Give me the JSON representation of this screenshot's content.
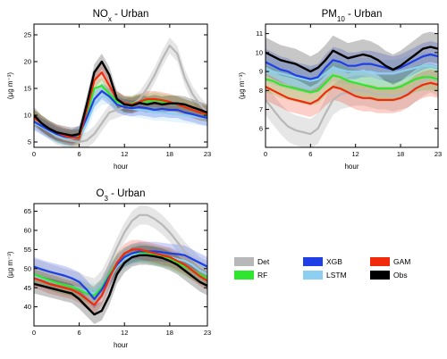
{
  "chart_data": [
    {
      "type": "line",
      "title_main": "NO",
      "title_sub": "x",
      "title_rest": " - Urban",
      "xlabel": "hour",
      "ylabel": "(µg m⁻³)",
      "xlim": [
        0,
        23
      ],
      "ylim": [
        4,
        27
      ],
      "xticks": [
        0,
        6,
        12,
        18,
        23
      ],
      "yticks": [
        5,
        10,
        15,
        20,
        25
      ],
      "x": [
        0,
        1,
        2,
        3,
        4,
        5,
        6,
        7,
        8,
        9,
        10,
        11,
        12,
        13,
        14,
        15,
        16,
        17,
        18,
        19,
        20,
        21,
        22,
        23
      ],
      "series": [
        {
          "name": "Det",
          "values": [
            9.5,
            8.0,
            7.0,
            6.0,
            5.5,
            5.2,
            5.0,
            5.3,
            6.5,
            8.5,
            10.5,
            11.0,
            11.5,
            12.0,
            13.0,
            15.0,
            17.5,
            20.5,
            23.0,
            21.5,
            17.0,
            14.0,
            12.0,
            10.5
          ],
          "band": 1.5
        },
        {
          "name": "RF",
          "values": [
            9.5,
            8.5,
            7.5,
            6.5,
            6.0,
            5.8,
            6.0,
            10.0,
            15.0,
            15.5,
            14.0,
            12.5,
            12.0,
            12.2,
            12.5,
            12.5,
            12.8,
            12.5,
            12.2,
            12.0,
            11.5,
            11.0,
            10.5,
            10.2
          ],
          "band": 1.5
        },
        {
          "name": "XGB",
          "values": [
            8.8,
            8.0,
            7.2,
            6.5,
            6.0,
            5.8,
            6.5,
            9.5,
            13.0,
            14.5,
            13.5,
            12.0,
            11.5,
            11.3,
            11.5,
            11.3,
            11.0,
            11.2,
            11.0,
            11.0,
            10.5,
            10.2,
            9.8,
            9.5
          ],
          "band": 1.5
        },
        {
          "name": "LSTM",
          "values": [
            8.5,
            7.8,
            7.0,
            6.3,
            5.8,
            5.6,
            6.0,
            8.5,
            12.0,
            13.5,
            13.5,
            12.3,
            11.5,
            11.2,
            11.0,
            10.8,
            10.5,
            10.5,
            10.3,
            10.2,
            10.0,
            9.8,
            9.6,
            9.4
          ],
          "band": 1.5
        },
        {
          "name": "GAM",
          "values": [
            9.5,
            8.5,
            7.5,
            6.8,
            6.2,
            5.8,
            5.8,
            11.0,
            16.5,
            18.0,
            15.5,
            13.0,
            12.2,
            12.0,
            12.5,
            13.0,
            13.0,
            12.8,
            12.5,
            12.0,
            11.5,
            11.0,
            10.5,
            10.3
          ],
          "band": 1.5
        },
        {
          "name": "Obs",
          "values": [
            10.0,
            8.5,
            7.5,
            6.8,
            6.5,
            6.2,
            6.5,
            12.0,
            18.0,
            20.0,
            17.5,
            13.0,
            12.0,
            11.8,
            12.3,
            12.0,
            12.3,
            12.0,
            12.2,
            12.2,
            12.0,
            11.5,
            11.0,
            10.5
          ],
          "band": 1.5
        }
      ]
    },
    {
      "type": "line",
      "title_main": "PM",
      "title_sub": "10",
      "title_rest": " - Urban",
      "xlabel": "hour",
      "ylabel": "(µg m⁻³)",
      "xlim": [
        0,
        23
      ],
      "ylim": [
        5,
        11.5
      ],
      "xticks": [
        0,
        6,
        12,
        18,
        23
      ],
      "yticks": [
        6,
        7,
        8,
        9,
        10,
        11
      ],
      "x": [
        0,
        1,
        2,
        3,
        4,
        5,
        6,
        7,
        8,
        9,
        10,
        11,
        12,
        13,
        14,
        15,
        16,
        17,
        18,
        19,
        20,
        21,
        22,
        23
      ],
      "series": [
        {
          "name": "Det",
          "values": [
            7.5,
            7.0,
            6.5,
            6.1,
            5.9,
            5.8,
            5.7,
            6.0,
            6.8,
            7.5,
            7.8,
            7.9,
            8.0,
            8.0,
            7.9,
            7.8,
            7.8,
            7.7,
            7.8,
            7.9,
            8.2,
            8.5,
            8.7,
            8.5
          ],
          "band": 0.8
        },
        {
          "name": "RF",
          "values": [
            8.6,
            8.5,
            8.3,
            8.2,
            8.1,
            8.0,
            7.9,
            8.0,
            8.4,
            8.8,
            8.7,
            8.5,
            8.4,
            8.3,
            8.2,
            8.1,
            8.1,
            8.1,
            8.2,
            8.4,
            8.6,
            8.7,
            8.7,
            8.6
          ],
          "band": 0.7
        },
        {
          "name": "XGB",
          "values": [
            9.5,
            9.3,
            9.1,
            9.0,
            8.8,
            8.7,
            8.6,
            8.7,
            9.2,
            9.6,
            9.5,
            9.3,
            9.3,
            9.4,
            9.4,
            9.3,
            9.2,
            9.1,
            9.2,
            9.4,
            9.6,
            9.8,
            9.9,
            9.8
          ],
          "band": 0.7
        },
        {
          "name": "LSTM",
          "values": [
            9.2,
            9.0,
            8.9,
            8.8,
            8.7,
            8.6,
            8.5,
            8.6,
            8.9,
            9.2,
            9.1,
            9.0,
            9.0,
            9.0,
            9.0,
            8.9,
            8.9,
            8.9,
            9.0,
            9.1,
            9.2,
            9.3,
            9.3,
            9.2
          ],
          "band": 0.7
        },
        {
          "name": "GAM",
          "values": [
            8.2,
            8.0,
            7.8,
            7.6,
            7.5,
            7.4,
            7.3,
            7.5,
            7.9,
            8.2,
            8.1,
            7.9,
            7.7,
            7.6,
            7.6,
            7.5,
            7.5,
            7.5,
            7.6,
            7.8,
            8.1,
            8.3,
            8.4,
            8.3
          ],
          "band": 0.7
        },
        {
          "name": "Obs",
          "values": [
            10.0,
            9.8,
            9.6,
            9.5,
            9.4,
            9.2,
            9.0,
            9.2,
            9.6,
            10.1,
            9.9,
            9.7,
            9.8,
            9.9,
            9.8,
            9.6,
            9.3,
            9.1,
            9.3,
            9.6,
            9.9,
            10.2,
            10.3,
            10.2
          ],
          "band": 0.8
        }
      ]
    },
    {
      "type": "line",
      "title_main": "O",
      "title_sub": "3",
      "title_rest": " - Urban",
      "xlabel": "hour",
      "ylabel": "(µg m⁻³)",
      "xlim": [
        0,
        23
      ],
      "ylim": [
        35,
        67
      ],
      "xticks": [
        0,
        6,
        12,
        18,
        23
      ],
      "yticks": [
        40,
        45,
        50,
        55,
        60,
        65
      ],
      "x": [
        0,
        1,
        2,
        3,
        4,
        5,
        6,
        7,
        8,
        9,
        10,
        11,
        12,
        13,
        14,
        15,
        16,
        17,
        18,
        19,
        20,
        21,
        22,
        23
      ],
      "series": [
        {
          "name": "Det",
          "values": [
            50.0,
            49.5,
            48.8,
            48.2,
            47.5,
            47.0,
            46.5,
            45.5,
            45.0,
            47.0,
            51.0,
            55.5,
            59.5,
            62.5,
            64.0,
            64.0,
            63.0,
            61.5,
            59.5,
            57.0,
            54.5,
            52.5,
            50.5,
            49.5
          ],
          "band": 2.5
        },
        {
          "name": "RF",
          "values": [
            48.5,
            47.8,
            47.0,
            46.3,
            45.8,
            45.2,
            44.5,
            43.5,
            43.0,
            45.0,
            48.5,
            51.5,
            53.0,
            54.0,
            54.2,
            54.0,
            53.5,
            53.0,
            52.5,
            51.5,
            50.5,
            49.5,
            48.5,
            47.5
          ],
          "band": 2.5
        },
        {
          "name": "XGB",
          "values": [
            50.5,
            49.8,
            49.2,
            48.7,
            48.2,
            47.5,
            46.5,
            44.5,
            42.0,
            44.5,
            48.0,
            51.0,
            53.0,
            54.0,
            54.5,
            54.5,
            54.5,
            54.3,
            54.0,
            53.8,
            53.5,
            52.5,
            51.5,
            50.5
          ],
          "band": 2.5
        },
        {
          "name": "LSTM",
          "values": [
            48.0,
            47.5,
            46.8,
            46.2,
            45.8,
            45.3,
            44.8,
            44.0,
            43.5,
            44.5,
            47.5,
            50.5,
            52.5,
            53.5,
            54.0,
            53.8,
            53.5,
            53.2,
            53.0,
            52.5,
            52.0,
            51.0,
            49.5,
            48.5
          ],
          "band": 2.5
        },
        {
          "name": "GAM",
          "values": [
            47.5,
            46.8,
            46.0,
            45.5,
            45.0,
            44.5,
            43.5,
            42.0,
            40.5,
            43.0,
            47.5,
            51.5,
            54.0,
            55.0,
            55.0,
            54.5,
            54.0,
            53.5,
            53.0,
            52.0,
            51.0,
            49.5,
            48.0,
            46.8
          ],
          "band": 2.5
        },
        {
          "name": "Obs",
          "values": [
            46.0,
            45.5,
            45.0,
            44.5,
            44.0,
            43.5,
            42.0,
            40.0,
            38.0,
            39.0,
            43.0,
            48.5,
            51.5,
            53.0,
            53.5,
            53.5,
            53.2,
            52.8,
            52.0,
            51.0,
            49.5,
            48.0,
            46.5,
            45.5
          ],
          "band": 2.5
        }
      ]
    }
  ],
  "legend": {
    "items": [
      {
        "name": "Det",
        "color": "#b8b8b8"
      },
      {
        "name": "RF",
        "color": "#2ee62e"
      },
      {
        "name": "XGB",
        "color": "#1e3fe6"
      },
      {
        "name": "LSTM",
        "color": "#8ccff0"
      },
      {
        "name": "GAM",
        "color": "#f02a0a"
      },
      {
        "name": "Obs",
        "color": "#000000"
      }
    ]
  }
}
